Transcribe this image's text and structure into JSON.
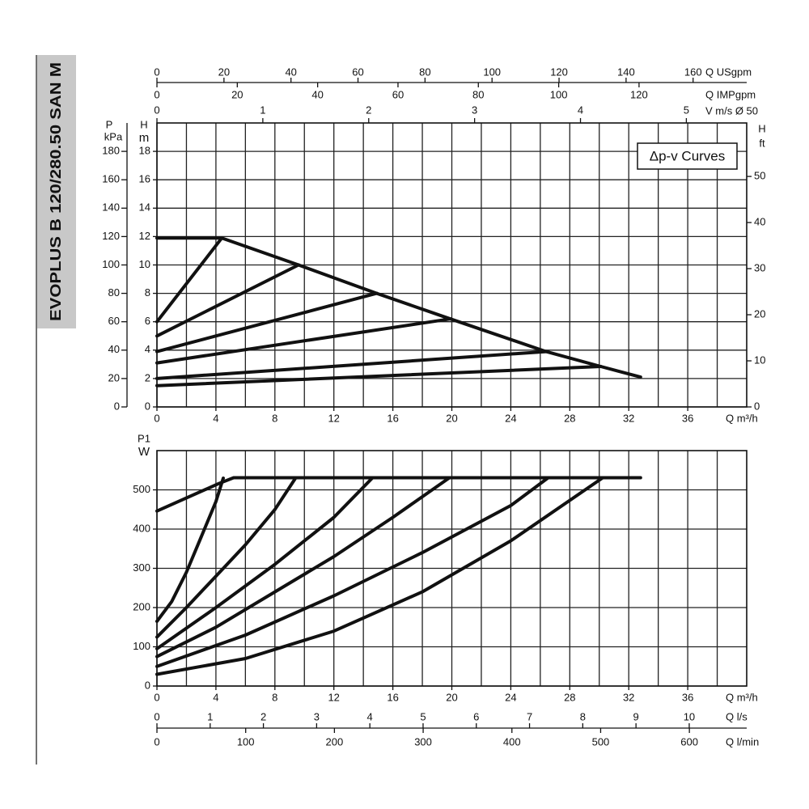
{
  "title": "EVOPLUS B 120/280.50 SAN M",
  "chart_data": [
    {
      "type": "line",
      "annotation": "Δp-v Curves",
      "xlabel": "Q m³/h",
      "ylabel": "H",
      "yunit": "m",
      "xlim": [
        0,
        40
      ],
      "xticks": [
        0,
        4,
        8,
        12,
        16,
        20,
        24,
        28,
        32,
        36
      ],
      "xminorticks": [
        2,
        6,
        10,
        14,
        18,
        22,
        26,
        30,
        34,
        38
      ],
      "ylim": [
        0,
        20
      ],
      "yticks": [
        0,
        2,
        4,
        6,
        8,
        10,
        12,
        14,
        16,
        18
      ],
      "grid": true,
      "series": [
        {
          "color": "#111111",
          "x": [
            0,
            4.4,
            9.6,
            14.9,
            19.9,
            26.4,
            30.1,
            32.8
          ],
          "values": [
            11.9,
            11.9,
            10.0,
            8.0,
            6.2,
            3.9,
            2.85,
            2.1
          ]
        },
        {
          "color": "#111111",
          "x": [
            0,
            4.4
          ],
          "values": [
            6.0,
            11.9
          ]
        },
        {
          "color": "#111111",
          "x": [
            0,
            9.6
          ],
          "values": [
            5.0,
            10.0
          ]
        },
        {
          "color": "#111111",
          "x": [
            0,
            14.9
          ],
          "values": [
            3.9,
            8.0
          ]
        },
        {
          "color": "#111111",
          "x": [
            0,
            19.9
          ],
          "values": [
            3.1,
            6.2
          ]
        },
        {
          "color": "#111111",
          "x": [
            0,
            26.4
          ],
          "values": [
            2.0,
            3.9
          ]
        },
        {
          "color": "#111111",
          "x": [
            0,
            30.1
          ],
          "values": [
            1.5,
            2.85
          ]
        }
      ],
      "extra_axes": [
        {
          "position": "left",
          "label": "P",
          "unit": "kPa",
          "lim": [
            0,
            200
          ],
          "ticks": [
            0,
            20,
            40,
            60,
            80,
            100,
            120,
            140,
            160,
            180
          ]
        },
        {
          "position": "right",
          "label": "H",
          "unit": "ft",
          "lim": [
            0,
            61.6
          ],
          "ticks": [
            0,
            10,
            20,
            30,
            40,
            50
          ]
        },
        {
          "position": "top",
          "label": "Q USgpm",
          "lim": [
            0,
            176
          ],
          "ticks": [
            0,
            20,
            40,
            60,
            80,
            100,
            120,
            140,
            160
          ]
        },
        {
          "position": "top",
          "label": "Q IMPgpm",
          "lim": [
            0,
            146.8
          ],
          "ticks": [
            0,
            20,
            40,
            60,
            80,
            100,
            120
          ]
        },
        {
          "position": "top",
          "label": "V m/s Ø 50",
          "lim": [
            0,
            5.57
          ],
          "ticks": [
            0,
            1,
            2,
            3,
            4,
            5
          ]
        }
      ]
    },
    {
      "type": "line",
      "xlabel": "Q m³/h",
      "ylabel": "P1",
      "yunit": "W",
      "xlim": [
        0,
        40
      ],
      "xticks": [
        0,
        4,
        8,
        12,
        16,
        20,
        24,
        28,
        32,
        36
      ],
      "xminorticks": [
        2,
        6,
        10,
        14,
        18,
        22,
        26,
        30,
        34,
        38
      ],
      "ylim": [
        0,
        600
      ],
      "yticks": [
        0,
        100,
        200,
        300,
        400,
        500
      ],
      "grid": true,
      "series": [
        {
          "color": "#111111",
          "x": [
            0,
            4.2,
            5.2,
            32.8
          ],
          "values": [
            446,
            516,
            531,
            531
          ]
        },
        {
          "color": "#111111",
          "x": [
            0,
            1,
            2,
            3,
            4,
            4.5
          ],
          "values": [
            165,
            215,
            290,
            380,
            470,
            530
          ]
        },
        {
          "color": "#111111",
          "x": [
            0,
            2,
            4,
            6,
            8,
            9.4
          ],
          "values": [
            125,
            200,
            280,
            360,
            450,
            530
          ]
        },
        {
          "color": "#111111",
          "x": [
            0,
            4,
            8,
            12,
            14.6
          ],
          "values": [
            95,
            200,
            310,
            430,
            530
          ]
        },
        {
          "color": "#111111",
          "x": [
            0,
            4,
            8,
            12,
            16,
            19.8
          ],
          "values": [
            75,
            150,
            240,
            330,
            430,
            530
          ]
        },
        {
          "color": "#111111",
          "x": [
            0,
            6,
            12,
            18,
            24,
            26.5
          ],
          "values": [
            50,
            130,
            230,
            340,
            460,
            530
          ]
        },
        {
          "color": "#111111",
          "x": [
            0,
            6,
            12,
            18,
            24,
            30.2
          ],
          "values": [
            30,
            70,
            140,
            240,
            370,
            530
          ]
        }
      ],
      "extra_axes": [
        {
          "position": "bottom",
          "label": "Q l/s",
          "lim": [
            0,
            11.08
          ],
          "ticks": [
            0,
            1,
            2,
            3,
            4,
            5,
            6,
            7,
            8,
            9,
            10
          ]
        },
        {
          "position": "bottom",
          "label": "Q l/min",
          "lim": [
            0,
            664.6
          ],
          "ticks": [
            0,
            100,
            200,
            300,
            400,
            500,
            600
          ]
        }
      ]
    }
  ]
}
